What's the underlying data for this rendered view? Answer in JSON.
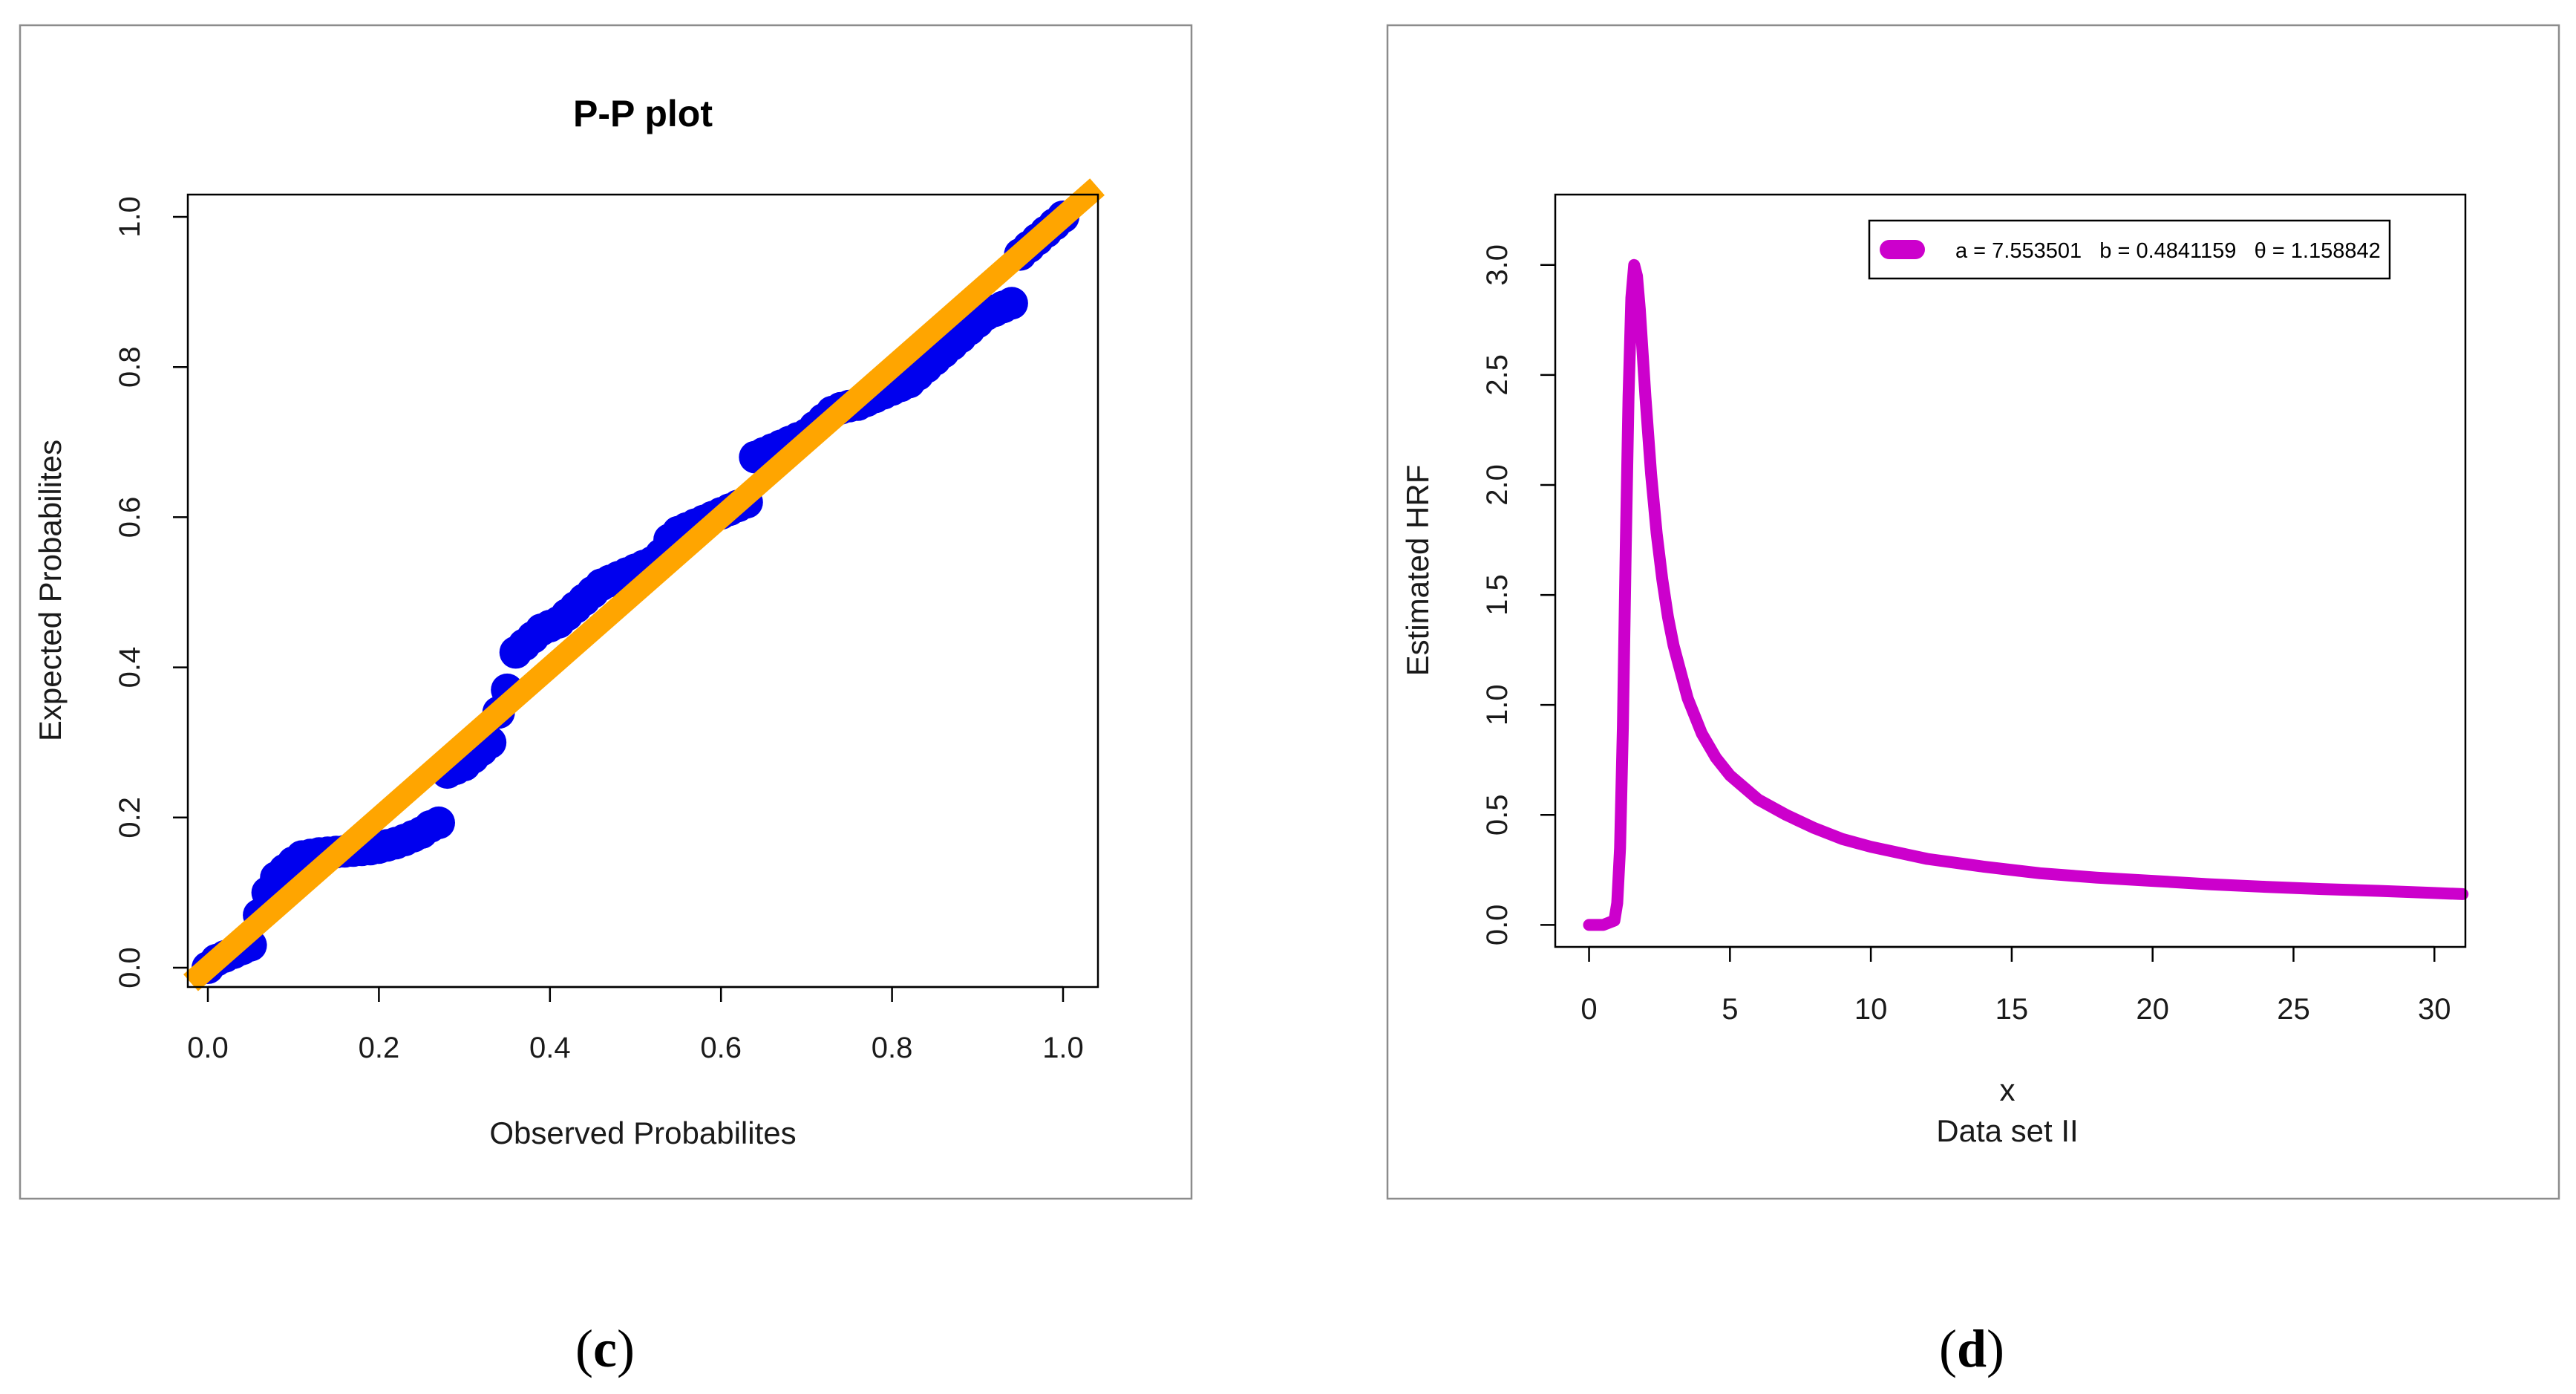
{
  "chart_data": [
    {
      "type": "scatter",
      "title": "P-P plot",
      "xlabel": "Observed Probabilites",
      "ylabel": "Expected Probabilites",
      "xlim": [
        0,
        1
      ],
      "ylim": [
        0,
        1
      ],
      "xticks": [
        "0.0",
        "0.2",
        "0.4",
        "0.6",
        "0.8",
        "1.0"
      ],
      "yticks": [
        "0.0",
        "0.2",
        "0.4",
        "0.6",
        "0.8",
        "1.0"
      ],
      "point_color": "#0000ee",
      "line_color": "#ffa500",
      "reference_line": {
        "x": [
          -0.02,
          1.04
        ],
        "y": [
          -0.02,
          1.04
        ]
      },
      "points": [
        [
          0.0,
          0.0
        ],
        [
          0.01,
          0.01
        ],
        [
          0.02,
          0.015
        ],
        [
          0.03,
          0.02
        ],
        [
          0.04,
          0.025
        ],
        [
          0.05,
          0.03
        ],
        [
          0.06,
          0.07
        ],
        [
          0.07,
          0.1
        ],
        [
          0.08,
          0.12
        ],
        [
          0.09,
          0.13
        ],
        [
          0.1,
          0.14
        ],
        [
          0.11,
          0.148
        ],
        [
          0.12,
          0.15
        ],
        [
          0.13,
          0.152
        ],
        [
          0.14,
          0.153
        ],
        [
          0.15,
          0.154
        ],
        [
          0.16,
          0.155
        ],
        [
          0.17,
          0.156
        ],
        [
          0.18,
          0.157
        ],
        [
          0.19,
          0.158
        ],
        [
          0.2,
          0.16
        ],
        [
          0.21,
          0.163
        ],
        [
          0.22,
          0.166
        ],
        [
          0.23,
          0.17
        ],
        [
          0.24,
          0.175
        ],
        [
          0.25,
          0.18
        ],
        [
          0.26,
          0.188
        ],
        [
          0.27,
          0.193
        ],
        [
          0.28,
          0.26
        ],
        [
          0.29,
          0.265
        ],
        [
          0.3,
          0.27
        ],
        [
          0.31,
          0.28
        ],
        [
          0.32,
          0.29
        ],
        [
          0.33,
          0.3
        ],
        [
          0.34,
          0.34
        ],
        [
          0.35,
          0.37
        ],
        [
          0.36,
          0.42
        ],
        [
          0.37,
          0.43
        ],
        [
          0.38,
          0.44
        ],
        [
          0.39,
          0.45
        ],
        [
          0.4,
          0.455
        ],
        [
          0.41,
          0.46
        ],
        [
          0.42,
          0.47
        ],
        [
          0.43,
          0.48
        ],
        [
          0.44,
          0.49
        ],
        [
          0.45,
          0.5
        ],
        [
          0.46,
          0.51
        ],
        [
          0.47,
          0.515
        ],
        [
          0.48,
          0.52
        ],
        [
          0.49,
          0.525
        ],
        [
          0.5,
          0.53
        ],
        [
          0.51,
          0.535
        ],
        [
          0.52,
          0.54
        ],
        [
          0.53,
          0.55
        ],
        [
          0.54,
          0.57
        ],
        [
          0.55,
          0.58
        ],
        [
          0.56,
          0.585
        ],
        [
          0.57,
          0.59
        ],
        [
          0.58,
          0.595
        ],
        [
          0.59,
          0.6
        ],
        [
          0.6,
          0.605
        ],
        [
          0.61,
          0.61
        ],
        [
          0.62,
          0.615
        ],
        [
          0.63,
          0.62
        ],
        [
          0.64,
          0.68
        ],
        [
          0.65,
          0.685
        ],
        [
          0.66,
          0.69
        ],
        [
          0.67,
          0.695
        ],
        [
          0.68,
          0.7
        ],
        [
          0.69,
          0.705
        ],
        [
          0.7,
          0.71
        ],
        [
          0.71,
          0.72
        ],
        [
          0.72,
          0.73
        ],
        [
          0.73,
          0.74
        ],
        [
          0.74,
          0.745
        ],
        [
          0.75,
          0.748
        ],
        [
          0.76,
          0.75
        ],
        [
          0.77,
          0.755
        ],
        [
          0.78,
          0.76
        ],
        [
          0.79,
          0.765
        ],
        [
          0.8,
          0.77
        ],
        [
          0.81,
          0.775
        ],
        [
          0.82,
          0.78
        ],
        [
          0.83,
          0.79
        ],
        [
          0.84,
          0.8
        ],
        [
          0.85,
          0.81
        ],
        [
          0.86,
          0.82
        ],
        [
          0.87,
          0.83
        ],
        [
          0.88,
          0.84
        ],
        [
          0.89,
          0.85
        ],
        [
          0.9,
          0.86
        ],
        [
          0.91,
          0.87
        ],
        [
          0.92,
          0.875
        ],
        [
          0.93,
          0.88
        ],
        [
          0.94,
          0.885
        ],
        [
          0.95,
          0.95
        ],
        [
          0.96,
          0.96
        ],
        [
          0.97,
          0.97
        ],
        [
          0.98,
          0.98
        ],
        [
          0.99,
          0.99
        ],
        [
          1.0,
          1.0
        ]
      ]
    },
    {
      "type": "line",
      "title": "",
      "xlabel": "x",
      "xlabel2": "Data set II",
      "ylabel": "Estimated HRF",
      "xlim": [
        -1.2,
        31.1
      ],
      "ylim": [
        -0.1,
        3.32
      ],
      "xticks": [
        "0",
        "5",
        "10",
        "15",
        "20",
        "25",
        "30"
      ],
      "yticks": [
        "0.0",
        "0.5",
        "1.0",
        "1.5",
        "2.0",
        "2.5",
        "3.0"
      ],
      "line_color": "#cc00cc",
      "legend": {
        "position": "top-right",
        "entries": [
          "a = 7.553501   b = 0.4841159   θ = 1.158842"
        ]
      },
      "series": [
        {
          "name": "a = 7.553501   b = 0.4841159   θ = 1.158842",
          "x": [
            0.0,
            0.5,
            0.9,
            1.0,
            1.1,
            1.2,
            1.3,
            1.4,
            1.5,
            1.6,
            1.7,
            1.8,
            1.9,
            2.0,
            2.2,
            2.4,
            2.6,
            2.8,
            3.0,
            3.5,
            4.0,
            4.5,
            5.0,
            6.0,
            7.0,
            8.0,
            9.0,
            10.0,
            12.0,
            14.0,
            16.0,
            18.0,
            20.0,
            22.0,
            24.0,
            26.0,
            28.0,
            30.0,
            31.0
          ],
          "y": [
            0.0,
            0.0,
            0.02,
            0.1,
            0.35,
            0.9,
            1.7,
            2.4,
            2.85,
            3.0,
            2.95,
            2.8,
            2.6,
            2.4,
            2.05,
            1.78,
            1.57,
            1.4,
            1.27,
            1.03,
            0.87,
            0.76,
            0.68,
            0.57,
            0.5,
            0.44,
            0.39,
            0.355,
            0.3,
            0.265,
            0.235,
            0.215,
            0.2,
            0.185,
            0.173,
            0.163,
            0.155,
            0.145,
            0.14
          ]
        }
      ]
    }
  ],
  "captions": [
    "c",
    "d"
  ]
}
